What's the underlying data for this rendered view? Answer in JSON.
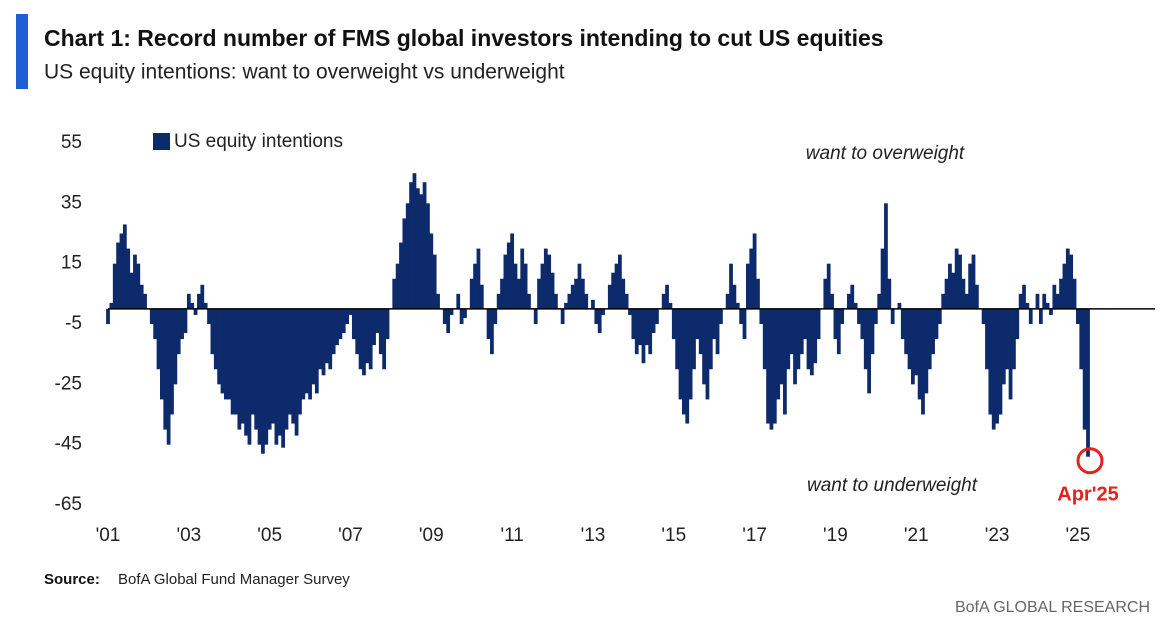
{
  "chart_data": {
    "type": "bar",
    "title": "Chart 1: Record number of FMS global investors intending to cut US equities",
    "subtitle": "US equity intentions: want to overweight vs underweight",
    "annotations": [
      "want to overweight",
      "want to underweight",
      "Apr'25"
    ],
    "source_label": "Source:",
    "source": "BofA Global Fund Manager Survey",
    "footer": "BofA GLOBAL RESEARCH",
    "categories": [
      "'01",
      null,
      null,
      null,
      null,
      null,
      null,
      null,
      null,
      null,
      null,
      null,
      null,
      null,
      null,
      null,
      null,
      null,
      null,
      null,
      null,
      null,
      null,
      null,
      "'03",
      null,
      null,
      null,
      null,
      null,
      null,
      null,
      null,
      null,
      null,
      null,
      null,
      null,
      null,
      null,
      null,
      null,
      null,
      null,
      null,
      null,
      null,
      null,
      "'05",
      null,
      null,
      null,
      null,
      null,
      null,
      null,
      null,
      null,
      null,
      null,
      null,
      null,
      null,
      null,
      null,
      null,
      null,
      null,
      null,
      null,
      null,
      null,
      "'07",
      null,
      null,
      null,
      null,
      null,
      null,
      null,
      null,
      null,
      null,
      null,
      null,
      null,
      null,
      null,
      null,
      null,
      null,
      null,
      null,
      null,
      null,
      null,
      "'09",
      null,
      null,
      null,
      null,
      null,
      null,
      null,
      null,
      null,
      null,
      null,
      null,
      null,
      null,
      null,
      null,
      null,
      null,
      null,
      null,
      null,
      null,
      null,
      "'11",
      null,
      null,
      null,
      null,
      null,
      null,
      null,
      null,
      null,
      null,
      null,
      null,
      null,
      null,
      null,
      null,
      null,
      null,
      null,
      null,
      null,
      null,
      null,
      "'13",
      null,
      null,
      null,
      null,
      null,
      null,
      null,
      null,
      null,
      null,
      null,
      null,
      null,
      null,
      null,
      null,
      null,
      null,
      null,
      null,
      null,
      null,
      null,
      "'15",
      null,
      null,
      null,
      null,
      null,
      null,
      null,
      null,
      null,
      null,
      null,
      null,
      null,
      null,
      null,
      null,
      null,
      null,
      null,
      null,
      null,
      null,
      null,
      "'17",
      null,
      null,
      null,
      null,
      null,
      null,
      null,
      null,
      null,
      null,
      null,
      null,
      null,
      null,
      null,
      null,
      null,
      null,
      null,
      null,
      null,
      null,
      null,
      "'19",
      null,
      null,
      null,
      null,
      null,
      null,
      null,
      null,
      null,
      null,
      null,
      null,
      null,
      null,
      null,
      null,
      null,
      null,
      null,
      null,
      null,
      null,
      null,
      "'21",
      null,
      null,
      null,
      null,
      null,
      null,
      null,
      null,
      null,
      null,
      null,
      null,
      null,
      null,
      null,
      null,
      null,
      null,
      null,
      null,
      null,
      null,
      null,
      "'23",
      null,
      null,
      null,
      null,
      null,
      null,
      null,
      null,
      null,
      null,
      null,
      null,
      null,
      null,
      null,
      null,
      null,
      null,
      null,
      null,
      null,
      null,
      null,
      "'25",
      null,
      null,
      null
    ],
    "series": [
      {
        "name": "US equity intentions",
        "color": "#0d2a6b",
        "values": [
          -5,
          2,
          15,
          22,
          25,
          28,
          20,
          12,
          18,
          15,
          8,
          5,
          0,
          -5,
          -10,
          -20,
          -30,
          -40,
          -45,
          -35,
          -25,
          -15,
          -10,
          -8,
          5,
          2,
          -2,
          5,
          8,
          2,
          -5,
          -15,
          -20,
          -25,
          -28,
          -30,
          -30,
          -35,
          -35,
          -40,
          -38,
          -42,
          -45,
          -35,
          -40,
          -45,
          -48,
          -45,
          -40,
          -38,
          -45,
          -42,
          -46,
          -40,
          -35,
          -38,
          -42,
          -35,
          -30,
          -28,
          -30,
          -25,
          -28,
          -20,
          -22,
          -18,
          -20,
          -15,
          -12,
          -10,
          -8,
          -5,
          -2,
          -10,
          -15,
          -20,
          -22,
          -18,
          -20,
          -12,
          -8,
          -15,
          -20,
          -10,
          0,
          10,
          15,
          22,
          30,
          35,
          42,
          45,
          40,
          38,
          42,
          35,
          25,
          18,
          5,
          0,
          -5,
          -8,
          -2,
          0,
          5,
          -5,
          -3,
          0,
          10,
          15,
          20,
          8,
          0,
          -10,
          -15,
          -5,
          5,
          10,
          18,
          22,
          25,
          15,
          10,
          20,
          15,
          5,
          0,
          -5,
          10,
          15,
          20,
          18,
          12,
          5,
          0,
          -5,
          2,
          5,
          8,
          10,
          15,
          10,
          5,
          0,
          3,
          -5,
          -8,
          -2,
          0,
          8,
          12,
          15,
          18,
          10,
          5,
          -2,
          -10,
          -15,
          -12,
          -18,
          -12,
          -15,
          -8,
          -5,
          0,
          5,
          8,
          2,
          -10,
          -20,
          -30,
          -35,
          -38,
          -30,
          -20,
          -10,
          -15,
          -25,
          -30,
          -20,
          -10,
          -15,
          -5,
          0,
          5,
          15,
          8,
          2,
          -5,
          -10,
          15,
          20,
          25,
          10,
          -5,
          -20,
          -38,
          -40,
          -38,
          -30,
          -25,
          -35,
          -20,
          -15,
          -25,
          -20,
          -15,
          -10,
          -20,
          -22,
          -18,
          -10,
          0,
          10,
          15,
          5,
          -10,
          -15,
          -5,
          0,
          5,
          8,
          2,
          -5,
          -10,
          -20,
          -28,
          -15,
          -5,
          5,
          20,
          35,
          10,
          -5,
          0,
          2,
          -10,
          -15,
          -20,
          -25,
          -22,
          -30,
          -35,
          -28,
          -20,
          -15,
          -10,
          -5,
          5,
          10,
          15,
          12,
          20,
          18,
          10,
          5,
          15,
          18,
          8,
          0,
          -5,
          -20,
          -35,
          -40,
          -38,
          -35,
          -25,
          -20,
          -30,
          -20,
          -10,
          5,
          8,
          2,
          -5,
          0,
          5,
          -5,
          5,
          2,
          -2,
          8,
          5,
          10,
          15,
          20,
          18,
          10,
          -5,
          -20,
          -40,
          -49
        ]
      }
    ],
    "ylim": [
      -65,
      55
    ],
    "yticks": [
      55,
      35,
      15,
      -5,
      -25,
      -45,
      -65
    ],
    "grid": false,
    "legend": "top-left",
    "highlight_color": "#e8211f"
  }
}
